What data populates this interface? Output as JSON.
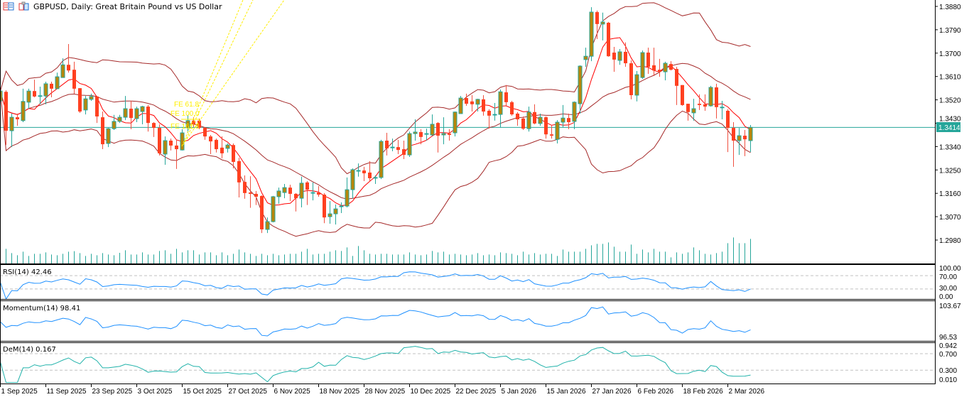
{
  "header": {
    "title": "GBPUSD, Daily:  Great Britain Pound vs US Dollar",
    "icons": [
      "chart-list-icon",
      "symbol-properties-icon"
    ]
  },
  "colors": {
    "bull_body": "#b8860b",
    "bull_border": "#26a69a",
    "bear_body": "#ff4020",
    "bear_wick": "#f05040",
    "bollinger": "#a52a2a",
    "fast_ma": "#ff0000",
    "volume": "#26a69a",
    "current_price": "#26a69a",
    "rsi_line": "#1e90ff",
    "momentum_line": "#1e90ff",
    "dem_line": "#20b2aa",
    "fibo": "#ffee00"
  },
  "chart_data": {
    "type": "candlestick",
    "symbol": "GBPUSD",
    "timeframe": "Daily",
    "ylim": [
      1.29,
      1.3905
    ],
    "price_ticks": [
      "1.3880",
      "1.3790",
      "1.3700",
      "1.3610",
      "1.3520",
      "1.3430",
      "1.3340",
      "1.3250",
      "1.3160",
      "1.3070",
      "1.2980"
    ],
    "current_price": "1.3414",
    "date_labels": [
      "1 Sep 2025",
      "11 Sep 2025",
      "23 Sep 2025",
      "3 Oct 2025",
      "15 Oct 2025",
      "27 Oct 2025",
      "6 Nov 2025",
      "18 Nov 2025",
      "28 Nov 2025",
      "10 Dec 2025",
      "22 Dec 2025",
      "5 Jan 2026",
      "15 Jan 2026",
      "27 Jan 2026",
      "6 Feb 2026",
      "18 Feb 2026",
      "2 Mar 2026"
    ],
    "date_label_every_bars": 8,
    "ohlc_order": [
      "open",
      "high",
      "low",
      "close"
    ],
    "ohlc": [
      [
        1.3516,
        1.3563,
        1.3511,
        1.3554
      ],
      [
        1.3551,
        1.3557,
        1.3346,
        1.3401
      ],
      [
        1.3401,
        1.3467,
        1.3338,
        1.3453
      ],
      [
        1.3453,
        1.3467,
        1.342,
        1.3445
      ],
      [
        1.344,
        1.3563,
        1.3434,
        1.3514
      ],
      [
        1.3511,
        1.3563,
        1.3486,
        1.3554
      ],
      [
        1.3554,
        1.3598,
        1.353,
        1.3533
      ],
      [
        1.3535,
        1.3571,
        1.3503,
        1.3536
      ],
      [
        1.3535,
        1.359,
        1.3503,
        1.3582
      ],
      [
        1.3582,
        1.359,
        1.353,
        1.3563
      ],
      [
        1.3563,
        1.3625,
        1.3563,
        1.3609
      ],
      [
        1.3606,
        1.368,
        1.3606,
        1.3655
      ],
      [
        1.3655,
        1.3735,
        1.3625,
        1.3633
      ],
      [
        1.3636,
        1.3667,
        1.3544,
        1.3563
      ],
      [
        1.3565,
        1.3565,
        1.347,
        1.3475
      ],
      [
        1.3481,
        1.3535,
        1.3464,
        1.3524
      ],
      [
        1.3522,
        1.3544,
        1.3516,
        1.3533
      ],
      [
        1.3533,
        1.3535,
        1.3431,
        1.3456
      ],
      [
        1.3453,
        1.3475,
        1.333,
        1.3349
      ],
      [
        1.3352,
        1.3412,
        1.3338,
        1.3409
      ],
      [
        1.3409,
        1.3462,
        1.3404,
        1.3437
      ],
      [
        1.3437,
        1.3462,
        1.3431,
        1.3453
      ],
      [
        1.3453,
        1.3535,
        1.3442,
        1.3486
      ],
      [
        1.3486,
        1.3516,
        1.3407,
        1.345
      ],
      [
        1.3448,
        1.3494,
        1.3434,
        1.3486
      ],
      [
        1.3475,
        1.3497,
        1.3426,
        1.3494
      ],
      [
        1.3494,
        1.35,
        1.3398,
        1.3431
      ],
      [
        1.3431,
        1.3434,
        1.3377,
        1.3412
      ],
      [
        1.3412,
        1.3426,
        1.3306,
        1.3314
      ],
      [
        1.3311,
        1.3379,
        1.327,
        1.3363
      ],
      [
        1.3363,
        1.3371,
        1.3325,
        1.3344
      ],
      [
        1.3344,
        1.3366,
        1.3254,
        1.333
      ],
      [
        1.3327,
        1.3407,
        1.3325,
        1.3393
      ],
      [
        1.3412,
        1.3462,
        1.3393,
        1.344
      ],
      [
        1.344,
        1.3453,
        1.3415,
        1.3426
      ],
      [
        1.344,
        1.3448,
        1.3407,
        1.3412
      ],
      [
        1.3412,
        1.3415,
        1.3366,
        1.3379
      ],
      [
        1.3379,
        1.3385,
        1.3311,
        1.336
      ],
      [
        1.3366,
        1.3371,
        1.3317,
        1.333
      ],
      [
        1.3336,
        1.3379,
        1.3295,
        1.3314
      ],
      [
        1.3333,
        1.3352,
        1.3317,
        1.3346
      ],
      [
        1.3346,
        1.3352,
        1.3256,
        1.3281
      ],
      [
        1.3284,
        1.3297,
        1.3144,
        1.3202
      ],
      [
        1.3204,
        1.3229,
        1.3139,
        1.3161
      ],
      [
        1.3163,
        1.3226,
        1.3104,
        1.3158
      ],
      [
        1.3158,
        1.3169,
        1.3115,
        1.3147
      ],
      [
        1.315,
        1.3152,
        1.3007,
        1.3021
      ],
      [
        1.3021,
        1.3067,
        1.3007,
        1.3051
      ],
      [
        1.3051,
        1.315,
        1.3048,
        1.3147
      ],
      [
        1.3147,
        1.3182,
        1.312,
        1.3169
      ],
      [
        1.3163,
        1.3196,
        1.3141,
        1.3182
      ],
      [
        1.3182,
        1.3193,
        1.313,
        1.3158
      ],
      [
        1.3158,
        1.3161,
        1.309,
        1.3141
      ],
      [
        1.3141,
        1.3224,
        1.3106,
        1.3199
      ],
      [
        1.3202,
        1.3207,
        1.3115,
        1.3174
      ],
      [
        1.3163,
        1.3202,
        1.3133,
        1.3163
      ],
      [
        1.3163,
        1.3188,
        1.3147,
        1.3155
      ],
      [
        1.3155,
        1.3161,
        1.3045,
        1.3067
      ],
      [
        1.307,
        1.313,
        1.3043,
        1.3081
      ],
      [
        1.3081,
        1.3117,
        1.304,
        1.31
      ],
      [
        1.3111,
        1.3125,
        1.3084,
        1.3111
      ],
      [
        1.3111,
        1.3221,
        1.3106,
        1.3174
      ],
      [
        1.3174,
        1.3256,
        1.3141,
        1.3251
      ],
      [
        1.3248,
        1.3275,
        1.3224,
        1.3248
      ],
      [
        1.3248,
        1.3262,
        1.3207,
        1.3237
      ],
      [
        1.324,
        1.3284,
        1.3204,
        1.3218
      ],
      [
        1.3221,
        1.3229,
        1.3196,
        1.3221
      ],
      [
        1.3221,
        1.3366,
        1.3215,
        1.336
      ],
      [
        1.3363,
        1.3393,
        1.3306,
        1.3333
      ],
      [
        1.3338,
        1.3371,
        1.3322,
        1.3338
      ],
      [
        1.3338,
        1.3366,
        1.3311,
        1.3327
      ],
      [
        1.333,
        1.3363,
        1.3292,
        1.3308
      ],
      [
        1.3308,
        1.3398,
        1.33,
        1.339
      ],
      [
        1.339,
        1.3445,
        1.3363,
        1.3396
      ],
      [
        1.3396,
        1.3407,
        1.3349,
        1.3377
      ],
      [
        1.339,
        1.3409,
        1.3363,
        1.339
      ],
      [
        1.3385,
        1.3464,
        1.3382,
        1.3426
      ],
      [
        1.3431,
        1.3434,
        1.3317,
        1.3382
      ],
      [
        1.3385,
        1.3453,
        1.3349,
        1.339
      ],
      [
        1.339,
        1.3407,
        1.3363,
        1.3385
      ],
      [
        1.3393,
        1.3475,
        1.3379,
        1.3473
      ],
      [
        1.3467,
        1.3535,
        1.3467,
        1.3527
      ],
      [
        1.3527,
        1.3544,
        1.3497,
        1.3505
      ],
      [
        1.3514,
        1.3538,
        1.3475,
        1.3503
      ],
      [
        1.3503,
        1.3524,
        1.3475,
        1.3522
      ],
      [
        1.3522,
        1.3538,
        1.3459,
        1.3475
      ],
      [
        1.3478,
        1.3484,
        1.3409,
        1.3459
      ],
      [
        1.3464,
        1.3508,
        1.344,
        1.3464
      ],
      [
        1.3464,
        1.356,
        1.3415,
        1.3551
      ],
      [
        1.3549,
        1.3577,
        1.3497,
        1.3511
      ],
      [
        1.3511,
        1.3516,
        1.3459,
        1.3464
      ],
      [
        1.3467,
        1.3473,
        1.342,
        1.3445
      ],
      [
        1.3448,
        1.3456,
        1.3404,
        1.3409
      ],
      [
        1.3409,
        1.3494,
        1.3398,
        1.3473
      ],
      [
        1.3473,
        1.3503,
        1.3426,
        1.3429
      ],
      [
        1.3429,
        1.3467,
        1.342,
        1.3453
      ],
      [
        1.3453,
        1.3456,
        1.3371,
        1.3387
      ],
      [
        1.3387,
        1.342,
        1.3371,
        1.3382
      ],
      [
        1.3368,
        1.3442,
        1.3352,
        1.3434
      ],
      [
        1.3434,
        1.35,
        1.3415,
        1.345
      ],
      [
        1.345,
        1.3467,
        1.3407,
        1.3434
      ],
      [
        1.3437,
        1.3514,
        1.3407,
        1.3511
      ],
      [
        1.3505,
        1.3653,
        1.3467,
        1.365
      ],
      [
        1.3675,
        1.3721,
        1.3647,
        1.3688
      ],
      [
        1.3688,
        1.3877,
        1.3669,
        1.3858
      ],
      [
        1.3858,
        1.3864,
        1.3754,
        1.3812
      ],
      [
        1.3812,
        1.3856,
        1.3749,
        1.382
      ],
      [
        1.3817,
        1.382,
        1.3686,
        1.3688
      ],
      [
        1.3702,
        1.3724,
        1.3628,
        1.3675
      ],
      [
        1.3672,
        1.3716,
        1.3655,
        1.3705
      ],
      [
        1.3705,
        1.3741,
        1.3647,
        1.3661
      ],
      [
        1.3661,
        1.3672,
        1.3522,
        1.3538
      ],
      [
        1.3538,
        1.3631,
        1.3514,
        1.3617
      ],
      [
        1.3606,
        1.371,
        1.3601,
        1.3702
      ],
      [
        1.3702,
        1.3721,
        1.362,
        1.3647
      ],
      [
        1.3653,
        1.3721,
        1.3612,
        1.3633
      ],
      [
        1.3636,
        1.3678,
        1.3609,
        1.3628
      ],
      [
        1.3628,
        1.3667,
        1.3595,
        1.3661
      ],
      [
        1.3658,
        1.3669,
        1.3633,
        1.3636
      ],
      [
        1.3639,
        1.3647,
        1.35,
        1.3574
      ],
      [
        1.3577,
        1.3577,
        1.3497,
        1.35
      ],
      [
        1.3505,
        1.3505,
        1.344,
        1.3473
      ],
      [
        1.347,
        1.3524,
        1.344,
        1.3486
      ],
      [
        1.3505,
        1.3541,
        1.3481,
        1.35
      ],
      [
        1.3503,
        1.3541,
        1.3478,
        1.3494
      ],
      [
        1.3497,
        1.3574,
        1.3494,
        1.3568
      ],
      [
        1.3568,
        1.3582,
        1.3448,
        1.3492
      ],
      [
        1.3492,
        1.3516,
        1.3445,
        1.3492
      ],
      [
        1.3478,
        1.3484,
        1.3319,
        1.3412
      ],
      [
        1.3412,
        1.3434,
        1.3262,
        1.3363
      ],
      [
        1.3363,
        1.3412,
        1.3308,
        1.3382
      ],
      [
        1.3382,
        1.3404,
        1.3303,
        1.3368
      ],
      [
        1.3363,
        1.3423,
        1.3319,
        1.3414
      ]
    ],
    "volume_relative": [
      50,
      62,
      44,
      35,
      50,
      32,
      41,
      41,
      47,
      38,
      35,
      41,
      50,
      52,
      44,
      32,
      41,
      35,
      44,
      38,
      35,
      45,
      56,
      38,
      38,
      47,
      38,
      38,
      53,
      56,
      41,
      62,
      47,
      56,
      56,
      38,
      47,
      47,
      35,
      47,
      35,
      41,
      59,
      47,
      41,
      32,
      41,
      35,
      41,
      35,
      38,
      41,
      41,
      50,
      62,
      38,
      41,
      41,
      50,
      56,
      53,
      68,
      32,
      74,
      56,
      41,
      38,
      41,
      41,
      38,
      38,
      38,
      47,
      38,
      35,
      38,
      53,
      47,
      50,
      38,
      41,
      38,
      35,
      38,
      44,
      35,
      38,
      35,
      47,
      44,
      41,
      35,
      50,
      38,
      44,
      38,
      41,
      41,
      32,
      59,
      50,
      50,
      50,
      62,
      77,
      83,
      83,
      89,
      71,
      50,
      50,
      80,
      41,
      59,
      47,
      62,
      50,
      50,
      26,
      47,
      41,
      47,
      68,
      56,
      41,
      38,
      44,
      50,
      86,
      110,
      86,
      86,
      104
    ],
    "annotations": [
      "FE 61.8",
      "FE 100.0",
      "FE 161.8"
    ],
    "indicators": [
      {
        "label": "RSI(14) 42.46",
        "range": [
          0,
          100
        ],
        "levels": [
          70,
          30
        ],
        "axis_labels": [
          "100.00",
          "70.00",
          "30.00",
          "0.00"
        ]
      },
      {
        "label": "Momentum(14) 98.41",
        "range": [
          96.53,
          103.67
        ],
        "levels": [],
        "axis_labels": [
          "103.67",
          "96.53"
        ]
      },
      {
        "label": "DeM(14) 0.167",
        "range": [
          0.01,
          0.942
        ],
        "levels": [
          0.7,
          0.3
        ],
        "axis_labels": [
          "0.942",
          "0.700",
          "0.300",
          "0.010"
        ]
      }
    ]
  }
}
